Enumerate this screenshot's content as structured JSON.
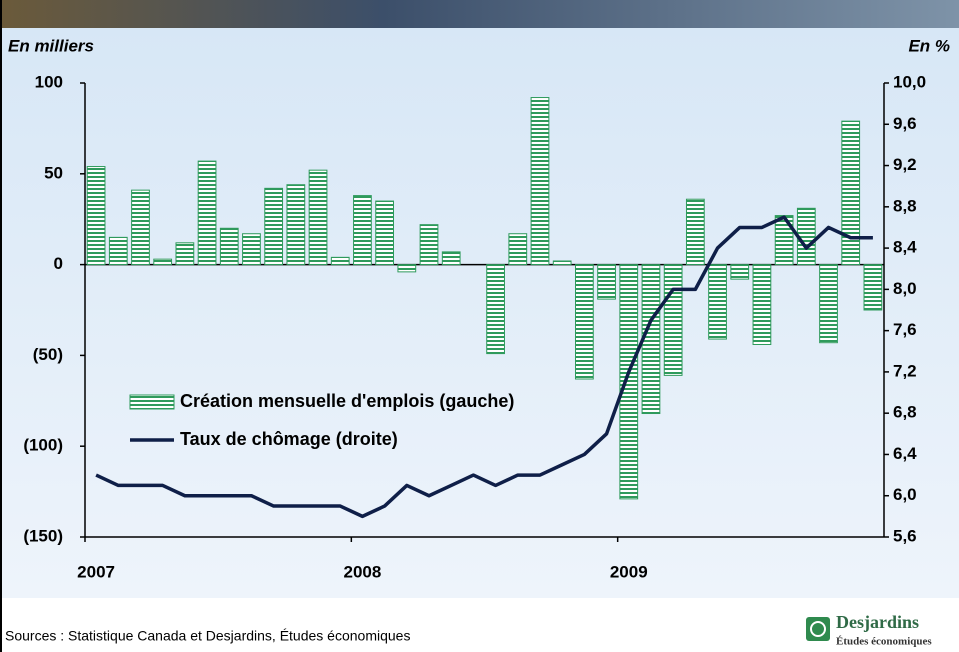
{
  "chart_data": {
    "type": "bar_line",
    "y_label": "En milliers",
    "y2_label": "En %",
    "categories": [
      "2007",
      null,
      null,
      null,
      null,
      null,
      null,
      null,
      null,
      null,
      null,
      null,
      "2008",
      null,
      null,
      null,
      null,
      null,
      null,
      null,
      null,
      null,
      null,
      null,
      "2009",
      null,
      null,
      null,
      null,
      null,
      null,
      null,
      null,
      null,
      null,
      null
    ],
    "series": [
      {
        "name": "Création mensuelle d'emplois (gauche)",
        "type": "bar",
        "color": "#2f9a5c",
        "values": [
          54,
          15,
          41,
          3,
          12,
          57,
          20,
          17,
          42,
          44,
          52,
          4,
          38,
          35,
          -4,
          22,
          7,
          0,
          -49,
          17,
          92,
          2,
          -63,
          -19,
          -129,
          -82,
          -61,
          36,
          -41,
          -8,
          -44,
          27,
          31,
          -43,
          79,
          -25
        ]
      },
      {
        "name": "Taux de chômage (droite)",
        "type": "line",
        "axis": "y2",
        "color": "#0f1f48",
        "values": [
          6.2,
          6.1,
          6.1,
          6.1,
          6.0,
          6.0,
          6.0,
          6.0,
          5.9,
          5.9,
          5.9,
          5.9,
          5.8,
          5.9,
          6.1,
          6.0,
          6.1,
          6.2,
          6.1,
          6.2,
          6.2,
          6.3,
          6.4,
          6.6,
          7.2,
          7.7,
          8.0,
          8.0,
          8.4,
          8.6,
          8.6,
          8.7,
          8.4,
          8.6,
          8.5,
          8.5
        ]
      }
    ],
    "ylim": [
      -150,
      100
    ],
    "yticks": [
      {
        "value": -150,
        "label": "(150)"
      },
      {
        "value": -100,
        "label": "(100)"
      },
      {
        "value": -50,
        "label": "(50)"
      },
      0,
      50,
      100
    ],
    "y2lim": [
      5.6,
      10.0
    ],
    "y2ticks": [
      {
        "value": 5.6,
        "label": "5,6"
      },
      {
        "value": 6.0,
        "label": "6,0"
      },
      {
        "value": 6.4,
        "label": "6,4"
      },
      {
        "value": 6.8,
        "label": "6,8"
      },
      {
        "value": 7.2,
        "label": "7,2"
      },
      {
        "value": 7.6,
        "label": "7,6"
      },
      {
        "value": 8.0,
        "label": "8,0"
      },
      {
        "value": 8.4,
        "label": "8,4"
      },
      {
        "value": 8.8,
        "label": "8,8"
      },
      {
        "value": 9.2,
        "label": "9,2"
      },
      {
        "value": 9.6,
        "label": "9,6"
      },
      {
        "value": 10.0,
        "label": "10,0"
      }
    ],
    "legend": "center-left",
    "grid": false,
    "source": "Sources : Statistique Canada et Desjardins, Études économiques"
  },
  "logo": {
    "name": "Desjardins",
    "subtitle": "Études économiques"
  }
}
